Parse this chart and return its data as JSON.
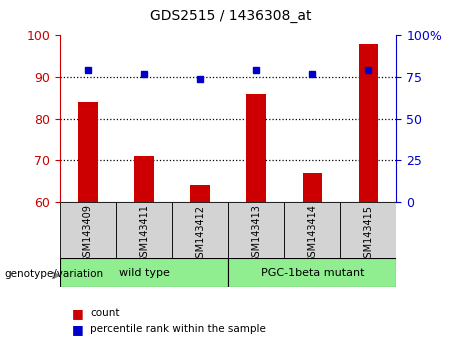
{
  "title": "GDS2515 / 1436308_at",
  "samples": [
    "GSM143409",
    "GSM143411",
    "GSM143412",
    "GSM143413",
    "GSM143414",
    "GSM143415"
  ],
  "bar_values": [
    84,
    71,
    64,
    86,
    67,
    98
  ],
  "percentile_values": [
    79,
    77,
    74,
    79,
    77,
    79
  ],
  "bar_color": "#cc0000",
  "percentile_color": "#0000cc",
  "ylim_left": [
    60,
    100
  ],
  "ylim_right": [
    0,
    100
  ],
  "yticks_left": [
    60,
    70,
    80,
    90,
    100
  ],
  "yticks_right": [
    0,
    25,
    50,
    75,
    100
  ],
  "ytick_labels_right": [
    "0",
    "25",
    "50",
    "75",
    "100%"
  ],
  "groups": [
    {
      "label": "wild type",
      "indices": [
        0,
        1,
        2
      ],
      "color": "#90ee90"
    },
    {
      "label": "PGC-1beta mutant",
      "indices": [
        3,
        4,
        5
      ],
      "color": "#90ee90"
    }
  ],
  "group_label": "genotype/variation",
  "legend_count_label": "count",
  "legend_pct_label": "percentile rank within the sample",
  "sample_box_color": "#d3d3d3",
  "plot_bg": "#ffffff",
  "bar_bottom": 60,
  "tick_label_color_left": "#cc0000",
  "tick_label_color_right": "#0000cc",
  "grid_lines_at": [
    70,
    80,
    90
  ],
  "bar_width": 0.35
}
